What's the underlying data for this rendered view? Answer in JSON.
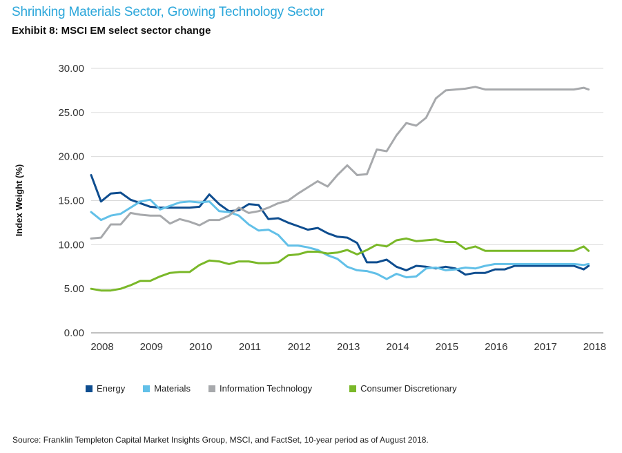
{
  "header": {
    "title": "Shrinking Materials Sector, Growing Technology Sector",
    "subtitle": "Exhibit 8: MSCI EM select sector change"
  },
  "footer": {
    "source": "Source: Franklin Templeton Capital Market Insights Group, MSCI, and FactSet, 10-year period as of August 2018."
  },
  "chart_data": {
    "type": "line",
    "title": "Shrinking Materials Sector, Growing Technology Sector",
    "subtitle": "Exhibit 8: MSCI EM select sector change",
    "xlabel": "",
    "ylabel": "Index Weight (%)",
    "ylim": [
      0,
      30
    ],
    "xlim": [
      2008,
      2018.2
    ],
    "yticks": [
      "0.00",
      "5.00",
      "10.00",
      "15.00",
      "20.00",
      "25.00",
      "30.00"
    ],
    "xticks": [
      2008,
      2009,
      2010,
      2011,
      2012,
      2013,
      2014,
      2015,
      2016,
      2017,
      2018
    ],
    "grid": true,
    "legend_position": "bottom",
    "x": [
      2008.0,
      2008.2,
      2008.4,
      2008.6,
      2008.8,
      2009.0,
      2009.2,
      2009.4,
      2009.6,
      2009.8,
      2010.0,
      2010.2,
      2010.4,
      2010.6,
      2010.8,
      2011.0,
      2011.2,
      2011.4,
      2011.6,
      2011.8,
      2012.0,
      2012.2,
      2012.4,
      2012.6,
      2012.8,
      2013.0,
      2013.2,
      2013.4,
      2013.6,
      2013.8,
      2014.0,
      2014.2,
      2014.4,
      2014.6,
      2014.8,
      2015.0,
      2015.2,
      2015.4,
      2015.6,
      2015.8,
      2016.0,
      2016.2,
      2016.4,
      2016.6,
      2016.8,
      2017.0,
      2017.2,
      2017.4,
      2017.6,
      2017.8,
      2018.0,
      2018.1
    ],
    "series": [
      {
        "name": "Energy",
        "color": "#0e4d8f",
        "values": [
          17.9,
          14.9,
          15.8,
          15.9,
          15.1,
          14.7,
          14.3,
          14.2,
          14.2,
          14.2,
          14.2,
          14.3,
          15.7,
          14.6,
          13.8,
          13.9,
          14.6,
          14.5,
          12.9,
          13.0,
          12.5,
          12.1,
          11.7,
          11.9,
          11.3,
          10.9,
          10.8,
          10.2,
          8.0,
          8.0,
          8.3,
          7.5,
          7.1,
          7.6,
          7.5,
          7.3,
          7.5,
          7.3,
          6.6,
          6.8,
          6.8,
          7.2,
          7.2,
          7.6,
          7.6,
          7.6,
          7.6,
          7.6,
          7.6,
          7.6,
          7.2,
          7.6
        ]
      },
      {
        "name": "Materials",
        "color": "#62c0e8",
        "values": [
          13.7,
          12.8,
          13.3,
          13.5,
          14.2,
          14.9,
          15.1,
          14.0,
          14.4,
          14.8,
          14.9,
          14.8,
          14.9,
          13.8,
          13.7,
          13.3,
          12.3,
          11.6,
          11.7,
          11.1,
          9.9,
          9.9,
          9.7,
          9.4,
          8.8,
          8.4,
          7.5,
          7.1,
          7.0,
          6.7,
          6.1,
          6.7,
          6.3,
          6.4,
          7.3,
          7.4,
          7.1,
          7.2,
          7.4,
          7.3,
          7.6,
          7.8,
          7.8,
          7.8,
          7.8,
          7.8,
          7.8,
          7.8,
          7.8,
          7.8,
          7.7,
          7.8
        ]
      },
      {
        "name": "Information Technology",
        "color": "#a7a9ac",
        "values": [
          10.7,
          10.8,
          12.3,
          12.3,
          13.6,
          13.4,
          13.3,
          13.3,
          12.4,
          12.9,
          12.6,
          12.2,
          12.8,
          12.8,
          13.3,
          14.2,
          13.6,
          13.8,
          14.2,
          14.7,
          15.0,
          15.8,
          16.5,
          17.2,
          16.6,
          17.9,
          19.0,
          17.9,
          18.0,
          20.8,
          20.6,
          22.4,
          23.8,
          23.5,
          24.4,
          26.6,
          27.5,
          27.6,
          27.7,
          27.9,
          27.6,
          27.6,
          27.6,
          27.6,
          27.6,
          27.6,
          27.6,
          27.6,
          27.6,
          27.6,
          27.8,
          27.6
        ]
      },
      {
        "name": "Consumer Discretionary",
        "color": "#7ab829",
        "values": [
          5.0,
          4.8,
          4.8,
          5.0,
          5.4,
          5.9,
          5.9,
          6.4,
          6.8,
          6.9,
          6.9,
          7.7,
          8.2,
          8.1,
          7.8,
          8.1,
          8.1,
          7.9,
          7.9,
          8.0,
          8.8,
          8.9,
          9.2,
          9.2,
          9.0,
          9.1,
          9.4,
          8.9,
          9.4,
          10.0,
          9.8,
          10.5,
          10.7,
          10.4,
          10.5,
          10.6,
          10.3,
          10.3,
          9.5,
          9.8,
          9.3,
          9.3,
          9.3,
          9.3,
          9.3,
          9.3,
          9.3,
          9.3,
          9.3,
          9.3,
          9.8,
          9.3
        ]
      }
    ]
  }
}
